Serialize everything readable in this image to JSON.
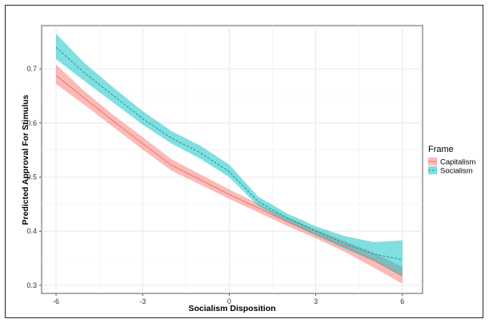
{
  "chart_data": {
    "type": "line",
    "xlabel": "Socialism Disposition",
    "ylabel": "Predicted Approval For Stimulus",
    "xlim": [
      -6.5,
      6.7
    ],
    "ylim": [
      0.285,
      0.78
    ],
    "x_ticks": [
      {
        "value": -6,
        "label": "-6"
      },
      {
        "value": -3,
        "label": "-3"
      },
      {
        "value": 0,
        "label": "0"
      },
      {
        "value": 3,
        "label": "3"
      },
      {
        "value": 6,
        "label": "6"
      }
    ],
    "y_ticks": [
      {
        "value": 0.3,
        "label": "0.3"
      },
      {
        "value": 0.4,
        "label": "0.4"
      },
      {
        "value": 0.5,
        "label": "0.5"
      },
      {
        "value": 0.6,
        "label": "0.6"
      },
      {
        "value": 0.7,
        "label": "0.7"
      }
    ],
    "grid": true,
    "legend": {
      "title": "Frame",
      "placement": "right"
    },
    "series": [
      {
        "name": "Capitalism",
        "line_color": "#e8766f",
        "fill_color": "#f8766d",
        "line_style": "solid",
        "x": [
          -6,
          -5,
          -4,
          -3,
          -2,
          -1,
          0,
          1,
          2,
          3,
          4,
          5,
          6
        ],
        "y": [
          0.688,
          0.645,
          0.603,
          0.562,
          0.522,
          0.495,
          0.468,
          0.443,
          0.418,
          0.395,
          0.372,
          0.347,
          0.318
        ],
        "lower": [
          0.672,
          0.633,
          0.592,
          0.551,
          0.512,
          0.486,
          0.46,
          0.435,
          0.41,
          0.387,
          0.362,
          0.333,
          0.303
        ],
        "upper": [
          0.708,
          0.658,
          0.614,
          0.574,
          0.533,
          0.505,
          0.477,
          0.451,
          0.426,
          0.403,
          0.382,
          0.36,
          0.334
        ]
      },
      {
        "name": "Socialism",
        "line_color": "#2a8f8f",
        "fill_color": "#00bfc4",
        "line_style": "dashed",
        "x": [
          -6,
          -5,
          -4,
          -3,
          -2,
          -1,
          0,
          1,
          2,
          3,
          4,
          5,
          6
        ],
        "y": [
          0.74,
          0.692,
          0.65,
          0.608,
          0.572,
          0.545,
          0.51,
          0.455,
          0.425,
          0.4,
          0.377,
          0.358,
          0.347
        ],
        "lower": [
          0.718,
          0.677,
          0.637,
          0.597,
          0.562,
          0.534,
          0.5,
          0.447,
          0.417,
          0.392,
          0.368,
          0.345,
          0.316
        ],
        "upper": [
          0.765,
          0.71,
          0.665,
          0.622,
          0.585,
          0.558,
          0.523,
          0.464,
          0.433,
          0.409,
          0.391,
          0.38,
          0.383
        ]
      }
    ]
  }
}
